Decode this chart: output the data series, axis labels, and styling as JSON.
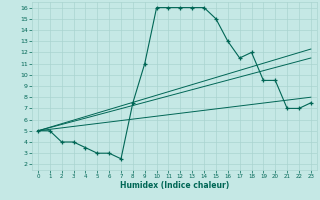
{
  "xlabel": "Humidex (Indice chaleur)",
  "bg_color": "#c5e8e5",
  "line_color": "#006655",
  "grid_color": "#aad4d0",
  "xlim": [
    -0.5,
    23.5
  ],
  "ylim": [
    1.5,
    16.5
  ],
  "xticks": [
    0,
    1,
    2,
    3,
    4,
    5,
    6,
    7,
    8,
    9,
    10,
    11,
    12,
    13,
    14,
    15,
    16,
    17,
    18,
    19,
    20,
    21,
    22,
    23
  ],
  "yticks": [
    2,
    3,
    4,
    5,
    6,
    7,
    8,
    9,
    10,
    11,
    12,
    13,
    14,
    15,
    16
  ],
  "main_x": [
    0,
    1,
    2,
    3,
    4,
    5,
    6,
    7,
    8,
    9,
    10,
    11,
    12,
    13,
    14,
    15,
    16,
    17,
    18,
    19,
    20,
    21,
    22,
    23
  ],
  "main_y": [
    5.0,
    5.0,
    4.0,
    4.0,
    3.5,
    3.0,
    3.0,
    2.5,
    7.5,
    11.0,
    16.0,
    16.0,
    16.0,
    16.0,
    16.0,
    15.0,
    13.0,
    11.5,
    12.0,
    9.5,
    9.5,
    7.0,
    7.0,
    7.5
  ],
  "trend1_x": [
    0,
    23
  ],
  "trend1_y": [
    5.0,
    12.3
  ],
  "trend2_x": [
    0,
    23
  ],
  "trend2_y": [
    5.0,
    11.5
  ],
  "trend3_x": [
    0,
    23
  ],
  "trend3_y": [
    5.0,
    8.0
  ]
}
